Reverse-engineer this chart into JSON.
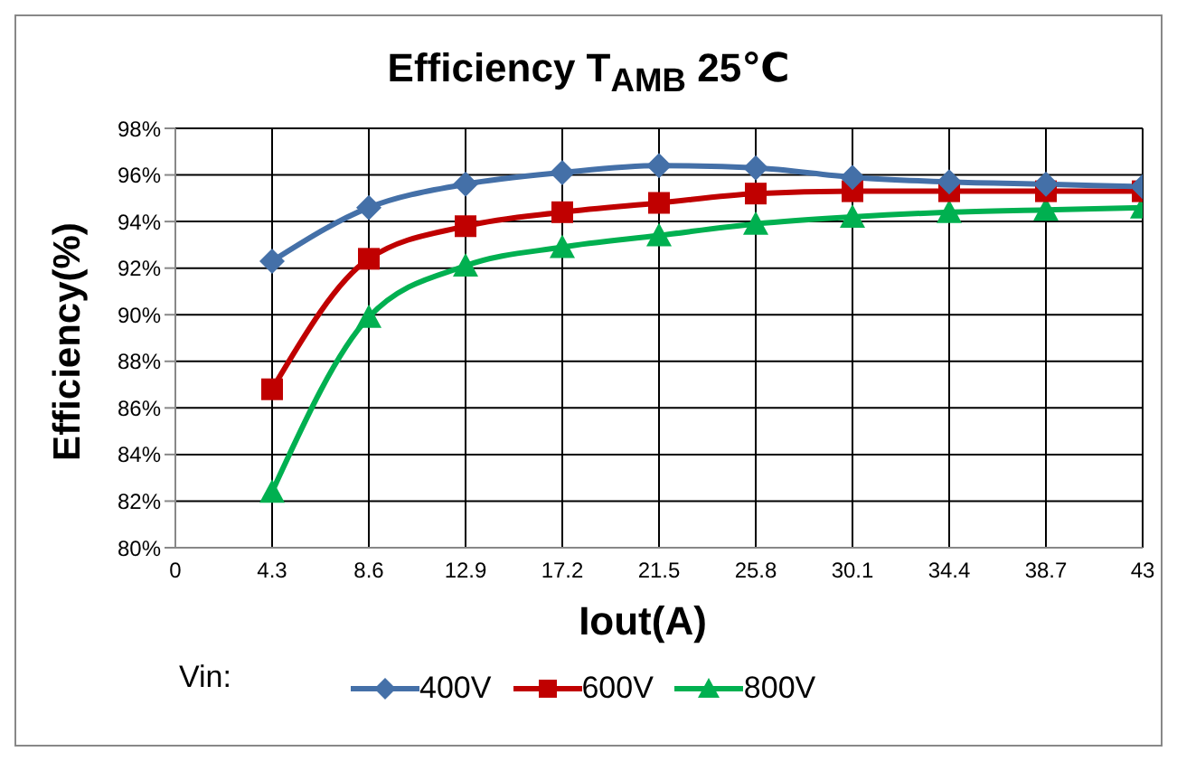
{
  "chart_data": {
    "type": "line",
    "title": "Efficiency T$_{AMB}$ 25℃",
    "xlabel": "Iout(A)",
    "ylabel": "Efficiency(%)",
    "legend_title": "Vin:",
    "x": [
      4.3,
      8.6,
      12.9,
      17.2,
      21.5,
      25.8,
      30.1,
      34.4,
      38.7,
      43
    ],
    "series": [
      {
        "name": "400V",
        "color": "#4470a8",
        "marker": "diamond",
        "values": [
          92.3,
          94.6,
          95.6,
          96.1,
          96.4,
          96.3,
          95.9,
          95.7,
          95.6,
          95.5
        ]
      },
      {
        "name": "600V",
        "color": "#c00000",
        "marker": "square",
        "values": [
          86.8,
          92.4,
          93.8,
          94.4,
          94.8,
          95.2,
          95.3,
          95.3,
          95.3,
          95.3
        ]
      },
      {
        "name": "800V",
        "color": "#00b050",
        "marker": "triangle",
        "values": [
          82.4,
          89.9,
          92.1,
          92.9,
          93.4,
          93.9,
          94.2,
          94.4,
          94.5,
          94.6
        ]
      }
    ],
    "xlim": [
      0,
      43
    ],
    "xticks": [
      0,
      4.3,
      8.6,
      12.9,
      17.2,
      21.5,
      25.8,
      30.1,
      34.4,
      38.7,
      43
    ],
    "ylim": [
      80,
      98
    ],
    "yticks": [
      {
        "value": 80,
        "label": "80%"
      },
      {
        "value": 82,
        "label": "82%"
      },
      {
        "value": 84,
        "label": "84%"
      },
      {
        "value": 86,
        "label": "86%"
      },
      {
        "value": 88,
        "label": "88%"
      },
      {
        "value": 90,
        "label": "90%"
      },
      {
        "value": 92,
        "label": "92%"
      },
      {
        "value": 94,
        "label": "94%"
      },
      {
        "value": 96,
        "label": "96%"
      },
      {
        "value": 98,
        "label": "98%"
      }
    ],
    "grid": true,
    "legend": "bottom",
    "line_style": "solid"
  }
}
